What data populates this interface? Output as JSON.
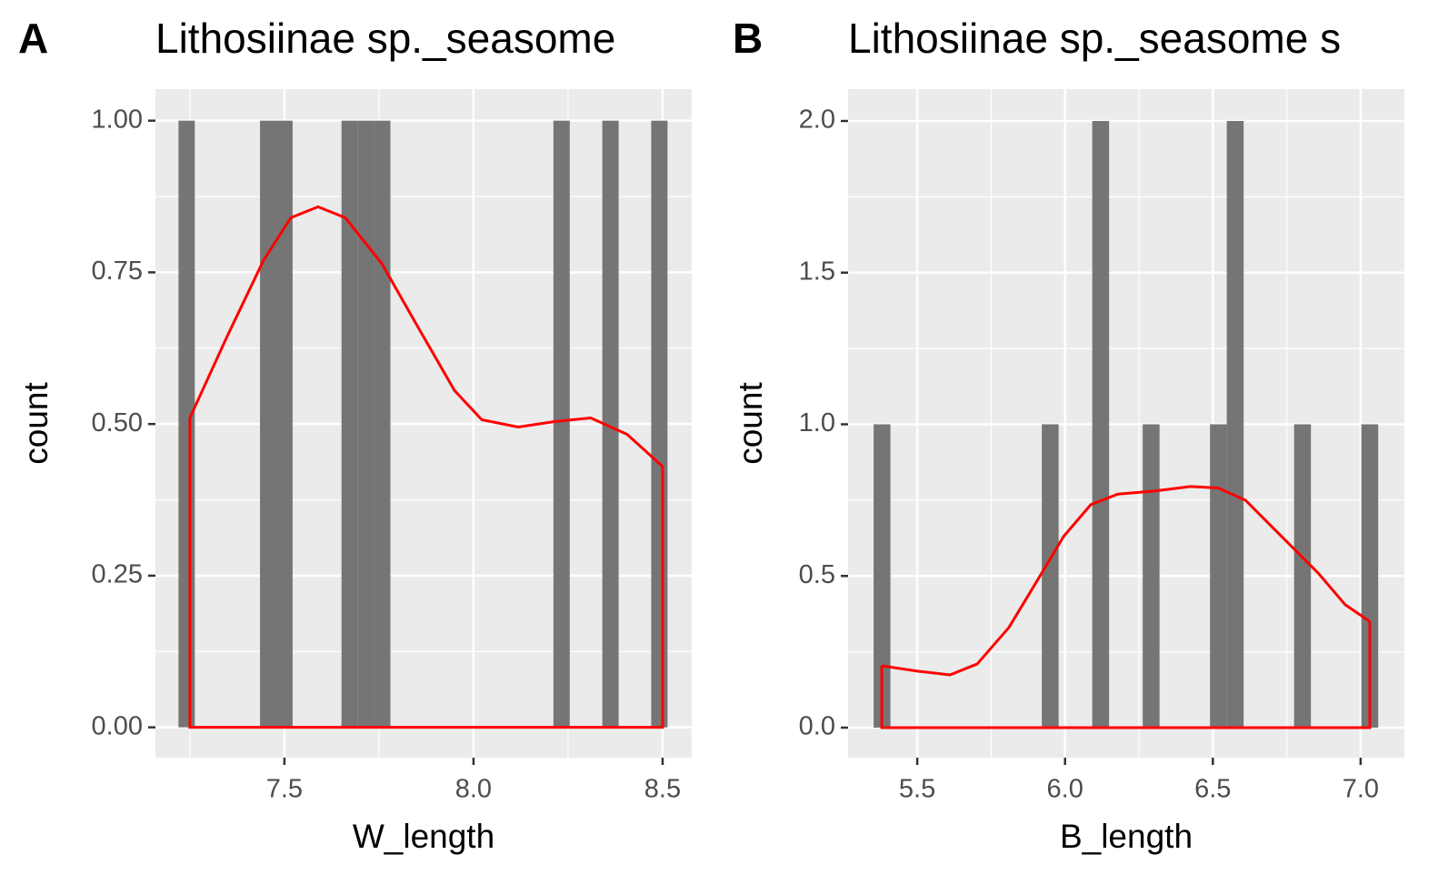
{
  "chart_data": [
    {
      "type": "histogram",
      "tag": "A",
      "title": "Lithosiinae sp._seasome",
      "xlabel": "W_length",
      "ylabel": "count",
      "bins": [
        7.22,
        7.2631,
        7.3062,
        7.3493,
        7.3924,
        7.4355,
        7.4786,
        7.5217,
        7.5648,
        7.6079,
        7.651,
        7.6941,
        7.7372,
        7.7803,
        7.8234,
        7.8665,
        7.9096,
        7.9527,
        7.9958,
        8.0389,
        8.082,
        8.1251,
        8.1682,
        8.2113,
        8.2544,
        8.2975,
        8.3406,
        8.3837,
        8.4268,
        8.4699,
        8.513
      ],
      "counts": [
        1,
        0,
        0,
        0,
        0,
        1,
        1,
        0,
        0,
        0,
        1,
        1,
        1,
        0,
        0,
        0,
        0,
        0,
        0,
        0,
        0,
        0,
        0,
        1,
        0,
        0,
        1,
        0,
        0,
        1
      ],
      "color": "#757575",
      "density": {
        "color": "#ff0000",
        "x": [
          7.25,
          7.349,
          7.445,
          7.517,
          7.589,
          7.661,
          7.757,
          7.853,
          7.95,
          8.022,
          8.118,
          8.214,
          8.31,
          8.406,
          8.5
        ],
        "y": [
          0.51,
          0.645,
          0.77,
          0.84,
          0.858,
          0.84,
          0.765,
          0.66,
          0.555,
          0.507,
          0.495,
          0.504,
          0.51,
          0.483,
          0.43
        ]
      },
      "xlim": [
        7.159,
        8.577
      ],
      "ylim": [
        -0.05,
        1.052
      ],
      "xticks": [
        7.5,
        {
          "value": 8.0,
          "label": "8.0"
        },
        8.5
      ],
      "yticks": [
        {
          "value": 0,
          "label": "0.00"
        },
        0.25,
        {
          "value": 0.5,
          "label": "0.50"
        },
        0.75,
        {
          "value": 1,
          "label": "1.00"
        }
      ],
      "grid": true
    },
    {
      "type": "histogram",
      "tag": "B",
      "title": "Lithosiinae sp._seasome s",
      "xlabel": "B_length",
      "ylabel": "count",
      "bins": [
        5.3524,
        5.4093,
        5.4662,
        5.5231,
        5.58,
        5.6369,
        5.6938,
        5.7507,
        5.8076,
        5.8645,
        5.9214,
        5.9783,
        6.0352,
        6.0921,
        6.149,
        6.2059,
        6.2628,
        6.3197,
        6.3766,
        6.4335,
        6.4904,
        6.5473,
        6.6042,
        6.6611,
        6.718,
        6.7749,
        6.8318,
        6.8887,
        6.9456,
        7.0025,
        7.0594
      ],
      "counts": [
        1,
        0,
        0,
        0,
        0,
        0,
        0,
        0,
        0,
        0,
        1,
        0,
        0,
        2,
        0,
        0,
        1,
        0,
        0,
        0,
        1,
        2,
        0,
        0,
        0,
        1,
        0,
        0,
        0,
        1
      ],
      "color": "#757575",
      "density": {
        "color": "#ff0000",
        "x": [
          5.38,
          5.503,
          5.611,
          5.703,
          5.81,
          5.903,
          5.995,
          6.087,
          6.179,
          6.302,
          6.425,
          6.518,
          6.61,
          6.733,
          6.856,
          6.948,
          7.031
        ],
        "y": [
          0.204,
          0.186,
          0.174,
          0.21,
          0.33,
          0.48,
          0.63,
          0.735,
          0.77,
          0.78,
          0.795,
          0.79,
          0.75,
          0.63,
          0.51,
          0.405,
          0.35
        ]
      },
      "xlim": [
        5.266,
        7.148
      ],
      "ylim": [
        -0.099,
        2.105
      ],
      "xticks": [
        5.5,
        {
          "value": 6.0,
          "label": "6.0"
        },
        6.5,
        {
          "value": 7.0,
          "label": "7.0"
        }
      ],
      "yticks": [
        {
          "value": 0,
          "label": "0.0"
        },
        0.5,
        {
          "value": 1,
          "label": "1.0"
        },
        1.5,
        {
          "value": 2,
          "label": "2.0"
        }
      ],
      "grid": true
    }
  ]
}
